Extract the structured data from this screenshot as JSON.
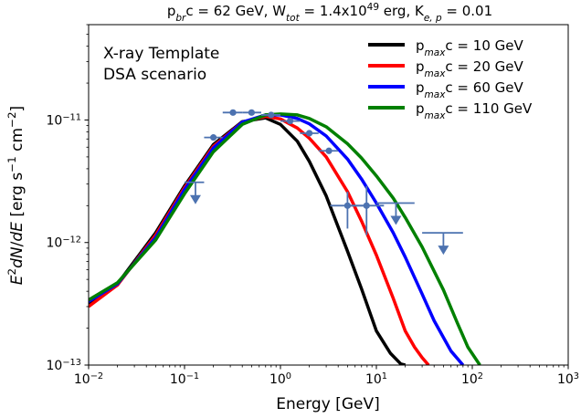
{
  "chart_data": {
    "type": "line",
    "title": "p_brc = 62 GeV, W_tot = 1.4x10^49 erg, K_e,p = 0.01",
    "title_parts": [
      {
        "t": "p",
        "s": "n"
      },
      {
        "t": "br",
        "s": "sub"
      },
      {
        "t": "c = 62 GeV, W",
        "s": "n"
      },
      {
        "t": "tot",
        "s": "sub"
      },
      {
        "t": " = 1.4x10",
        "s": "n"
      },
      {
        "t": "49",
        "s": "sup"
      },
      {
        "t": " erg, K",
        "s": "n"
      },
      {
        "t": "e, p",
        "s": "sub"
      },
      {
        "t": " = 0.01",
        "s": "n"
      }
    ],
    "xlabel": "Energy [GeV]",
    "ylabel": "E^2 dN/dE [erg s^-1 cm^-2]",
    "x_scale": "log",
    "y_scale": "log",
    "xlim": [
      0.01,
      1000
    ],
    "ylim": [
      1e-13,
      6e-11
    ],
    "x_ticks": [
      {
        "value": 0.01,
        "base": "10",
        "exp": "−2"
      },
      {
        "value": 0.1,
        "base": "10",
        "exp": "−1"
      },
      {
        "value": 1,
        "base": "10",
        "exp": "0"
      },
      {
        "value": 10,
        "base": "10",
        "exp": "1"
      },
      {
        "value": 100,
        "base": "10",
        "exp": "2"
      },
      {
        "value": 1000,
        "base": "10",
        "exp": "3"
      }
    ],
    "y_ticks": [
      {
        "value": 1e-13,
        "base": "10",
        "exp": "−13"
      },
      {
        "value": 1e-12,
        "base": "10",
        "exp": "−12"
      },
      {
        "value": 1e-11,
        "base": "10",
        "exp": "−11"
      }
    ],
    "annotation": [
      "X-ray Template",
      "DSA scenario"
    ],
    "legend_position": "top-right",
    "series": [
      {
        "name": "p_max c = 10 GeV",
        "label_main": "p",
        "label_sub": "max",
        "label_rest": "c = 10 GeV",
        "color": "#000000",
        "x": [
          0.01,
          0.02,
          0.05,
          0.1,
          0.2,
          0.4,
          0.7,
          1.0,
          1.5,
          2.0,
          3.0,
          5.0,
          7.0,
          10.0,
          14.0,
          18.0,
          20.0
        ],
        "y": [
          3.2e-13,
          4.6e-13,
          1.2e-12,
          2.9e-12,
          6.3e-12,
          9.7e-12,
          1.04e-11,
          9.2e-12,
          6.7e-12,
          4.6e-12,
          2.4e-12,
          8.5e-13,
          4.2e-13,
          1.9e-13,
          1.25e-13,
          1.02e-13,
          1e-13
        ]
      },
      {
        "name": "p_max c = 20 GeV",
        "label_main": "p",
        "label_sub": "max",
        "label_rest": "c = 20 GeV",
        "color": "#ff0000",
        "x": [
          0.01,
          0.02,
          0.05,
          0.1,
          0.2,
          0.4,
          0.7,
          1.0,
          1.5,
          2.0,
          3.0,
          5.0,
          7.0,
          10.0,
          15.0,
          20.0,
          25.0,
          30.0,
          35.0
        ],
        "y": [
          3e-13,
          4.5e-13,
          1.15e-12,
          2.8e-12,
          6.1e-12,
          9.6e-12,
          1.07e-11,
          1.02e-11,
          8.6e-12,
          7.1e-12,
          5e-12,
          2.6e-12,
          1.5e-12,
          7.9e-13,
          3.5e-13,
          1.9e-13,
          1.4e-13,
          1.15e-13,
          1e-13
        ]
      },
      {
        "name": "p_max c = 60 GeV",
        "label_main": "p",
        "label_sub": "max",
        "label_rest": "c = 60 GeV",
        "color": "#0000ff",
        "x": [
          0.01,
          0.02,
          0.05,
          0.1,
          0.2,
          0.4,
          0.7,
          1.0,
          1.5,
          2.0,
          3.0,
          5.0,
          7.0,
          10.0,
          15.0,
          20.0,
          30.0,
          40.0,
          60.0,
          80.0
        ],
        "y": [
          3.3e-13,
          4.6e-13,
          1.1e-12,
          2.7e-12,
          5.9e-12,
          9.6e-12,
          1.1e-11,
          1.1e-11,
          1.03e-11,
          9.3e-12,
          7.4e-12,
          4.8e-12,
          3.3e-12,
          2.1e-12,
          1.2e-12,
          7.6e-13,
          3.8e-13,
          2.3e-13,
          1.3e-13,
          1e-13
        ]
      },
      {
        "name": "p_max c = 110 GeV",
        "label_main": "p",
        "label_sub": "max",
        "label_rest": "c = 110 GeV",
        "color": "#008000",
        "x": [
          0.01,
          0.02,
          0.05,
          0.1,
          0.2,
          0.4,
          0.7,
          1.0,
          1.5,
          2.0,
          3.0,
          5.0,
          7.0,
          10.0,
          15.0,
          20.0,
          30.0,
          50.0,
          70.0,
          90.0,
          120.0
        ],
        "y": [
          3.4e-13,
          4.7e-13,
          1.05e-12,
          2.5e-12,
          5.5e-12,
          9.2e-12,
          1.1e-11,
          1.12e-11,
          1.1e-11,
          1.03e-11,
          8.8e-12,
          6.4e-12,
          4.9e-12,
          3.5e-12,
          2.3e-12,
          1.6e-12,
          9.2e-13,
          4.1e-13,
          2.2e-13,
          1.4e-13,
          1e-13
        ]
      }
    ],
    "data_points": {
      "color": "#4c72b0",
      "points": [
        {
          "x": 0.2,
          "y": 7.2e-12,
          "x_low": 0.16,
          "x_high": 0.25
        },
        {
          "x": 0.32,
          "y": 1.15e-11,
          "x_low": 0.25,
          "x_high": 0.4
        },
        {
          "x": 0.5,
          "y": 1.15e-11,
          "x_low": 0.4,
          "x_high": 0.63
        },
        {
          "x": 0.8,
          "y": 1.1e-11,
          "x_low": 0.63,
          "x_high": 1.0
        },
        {
          "x": 1.26,
          "y": 9.8e-12,
          "x_low": 1.0,
          "x_high": 1.6
        },
        {
          "x": 2.0,
          "y": 7.8e-12,
          "x_low": 1.6,
          "x_high": 2.5
        },
        {
          "x": 3.2,
          "y": 5.6e-12,
          "x_low": 2.5,
          "x_high": 4.0
        },
        {
          "x": 5.0,
          "y": 2e-12,
          "x_low": 3.3,
          "x_high": 7.5,
          "y_low": 1.3e-12,
          "y_high": 2.6e-12
        },
        {
          "x": 7.9,
          "y": 2e-12,
          "x_low": 5.0,
          "x_high": 12.0,
          "y_low": 1.15e-12,
          "y_high": 2.9e-12
        }
      ],
      "upper_limits": [
        {
          "x": 0.13,
          "y": 3.1e-12,
          "x_low": 0.1,
          "x_high": 0.16
        },
        {
          "x": 16.0,
          "y": 2.1e-12,
          "x_low": 10.0,
          "x_high": 25.0
        },
        {
          "x": 50.0,
          "y": 1.2e-12,
          "x_low": 30.0,
          "x_high": 80.0
        }
      ]
    }
  }
}
